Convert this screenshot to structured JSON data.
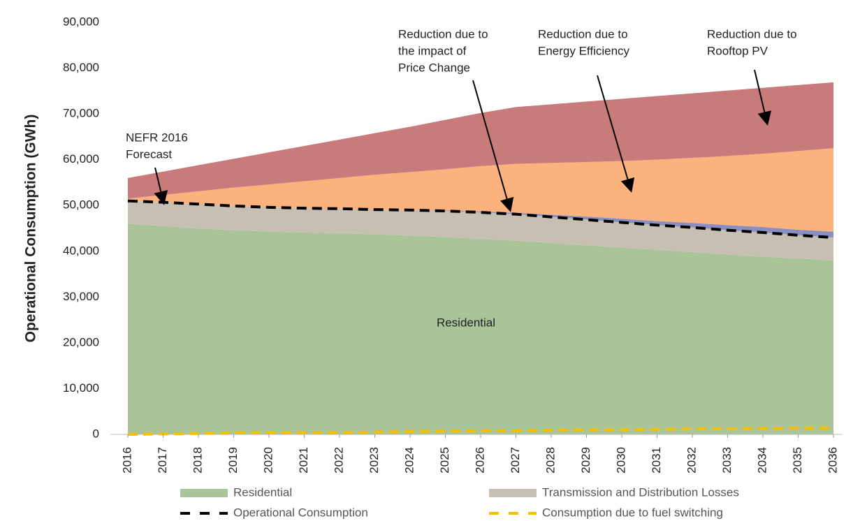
{
  "chart_data": {
    "type": "area",
    "ylabel": "Operational Consumption (GWh)",
    "categories": [
      "2016",
      "2017",
      "2018",
      "2019",
      "2020",
      "2021",
      "2022",
      "2023",
      "2024",
      "2025",
      "2026",
      "2027",
      "2028",
      "2029",
      "2030",
      "2031",
      "2032",
      "2033",
      "2034",
      "2035",
      "2036"
    ],
    "ylim": [
      0,
      90000
    ],
    "yticks": [
      0,
      {
        "value": 10000,
        "label": "10,000"
      },
      {
        "value": 20000,
        "label": "20,000"
      },
      {
        "value": 30000,
        "label": "30,000"
      },
      {
        "value": 40000,
        "label": "40,000"
      },
      {
        "value": 50000,
        "label": "50,000"
      },
      {
        "value": 60000,
        "label": "60,000"
      },
      {
        "value": 70000,
        "label": "70,000"
      },
      {
        "value": 80000,
        "label": "80,000"
      },
      {
        "value": 90000,
        "label": "90,000"
      }
    ],
    "grid": false,
    "legend": "bottom",
    "series": [
      {
        "name": "Residential",
        "color": "#a8c498",
        "values": [
          46000,
          45500,
          45000,
          44600,
          44300,
          44100,
          43900,
          43700,
          43400,
          43100,
          42700,
          42300,
          41800,
          41300,
          40800,
          40300,
          39800,
          39300,
          38800,
          38400,
          38000
        ]
      },
      {
        "name": "Transmission and Distribution Losses",
        "color": "#c7bfb2",
        "values": [
          5000,
          5200,
          5300,
          5300,
          5300,
          5300,
          5400,
          5400,
          5600,
          5700,
          5800,
          5800,
          5700,
          5600,
          5500,
          5400,
          5400,
          5300,
          5300,
          5100,
          5000
        ]
      },
      {
        "color": "#8a8fc0",
        "values": [
          0,
          0,
          0,
          0,
          0,
          0,
          0,
          0,
          0,
          100,
          200,
          300,
          500,
          700,
          800,
          900,
          1000,
          1100,
          1200,
          1200,
          1300
        ]
      },
      {
        "color": "#fbb27d",
        "values": [
          500,
          1600,
          2800,
          4000,
          5000,
          5900,
          6700,
          7600,
          8300,
          9000,
          9900,
          10700,
          11300,
          11900,
          12600,
          13400,
          14200,
          15100,
          16000,
          17200,
          18200
        ]
      },
      {
        "color": "#c97a7a",
        "values": [
          4500,
          5100,
          5700,
          6300,
          7000,
          7700,
          8400,
          9100,
          9900,
          10800,
          11600,
          12400,
          12800,
          13200,
          13600,
          13900,
          14100,
          14300,
          14400,
          14400,
          14400
        ]
      },
      {
        "name": "Operational Consumption",
        "type": "line",
        "color": "#000000",
        "values": [
          51000,
          50700,
          50300,
          49900,
          49600,
          49400,
          49300,
          49100,
          49000,
          48800,
          48500,
          48100,
          47500,
          46900,
          46300,
          45700,
          45200,
          44600,
          44100,
          43500,
          43000
        ]
      },
      {
        "name": "Consumption due to fuel switching",
        "type": "line",
        "color": "#f5c000",
        "values": [
          0,
          100,
          200,
          300,
          300,
          400,
          400,
          500,
          600,
          700,
          800,
          800,
          900,
          1000,
          1000,
          1100,
          1200,
          1200,
          1300,
          1400,
          1400
        ]
      }
    ],
    "annotations": [
      {
        "text": [
          "NEFR 2016",
          "Forecast"
        ]
      },
      {
        "text": [
          "Reduction due to",
          "the impact of",
          "Price Change"
        ]
      },
      {
        "text": [
          "Reduction due to",
          "Energy Efficiency"
        ]
      },
      {
        "text": [
          "Reduction due to",
          "Rooftop PV"
        ]
      },
      {
        "text": [
          "Residential"
        ]
      }
    ]
  }
}
